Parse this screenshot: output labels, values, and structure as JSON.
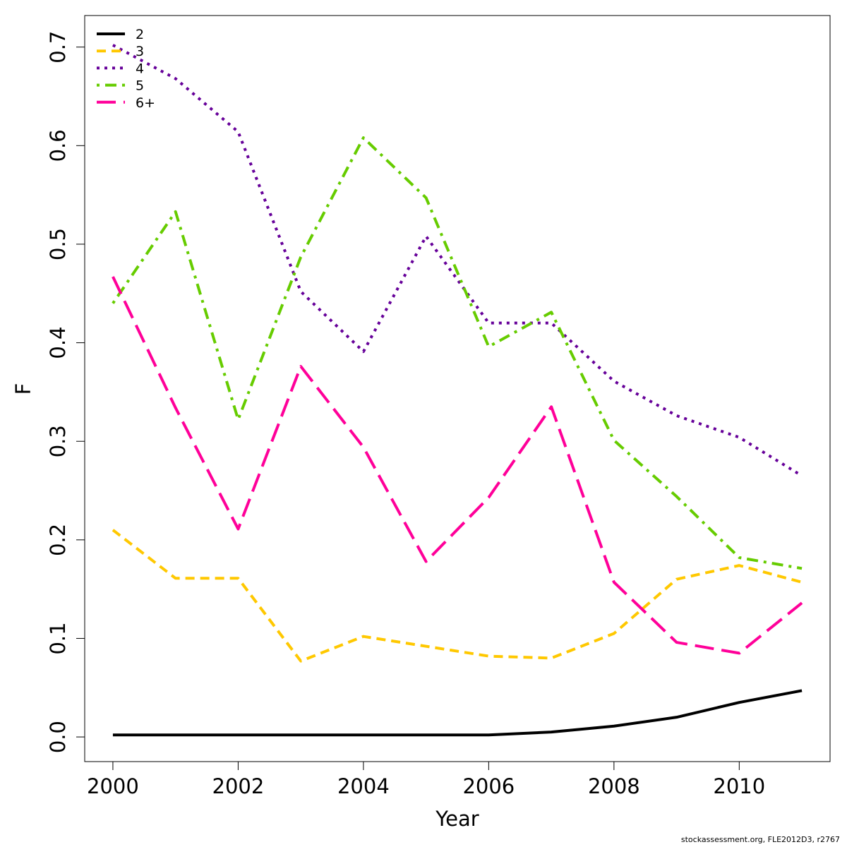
{
  "chart_data": {
    "type": "line",
    "xlabel": "Year",
    "ylabel": "F",
    "xlim": [
      1999.55,
      2011.45
    ],
    "ylim": [
      -0.025,
      0.732
    ],
    "x_ticks": [
      2000,
      2002,
      2004,
      2006,
      2008,
      2010
    ],
    "x_tick_labels": [
      "2000",
      "2002",
      "2004",
      "2006",
      "2008",
      "2010"
    ],
    "y_ticks": [
      0.0,
      0.1,
      0.2,
      0.3,
      0.4,
      0.5,
      0.6,
      0.7
    ],
    "y_tick_labels": [
      "0.0",
      "0.1",
      "0.2",
      "0.3",
      "0.4",
      "0.5",
      "0.6",
      "0.7"
    ],
    "grid": false,
    "legend_position": "top-left",
    "x": [
      2000,
      2001,
      2002,
      2003,
      2004,
      2005,
      2006,
      2007,
      2008,
      2009,
      2010,
      2011
    ],
    "series": [
      {
        "name": "2",
        "color": "#000000",
        "dash": "solid",
        "values": [
          0.002,
          0.002,
          0.002,
          0.002,
          0.002,
          0.002,
          0.002,
          0.005,
          0.011,
          0.02,
          0.035,
          0.047
        ]
      },
      {
        "name": "3",
        "color": "#FFC800",
        "dash": "dashed",
        "values": [
          0.21,
          0.161,
          0.161,
          0.077,
          0.102,
          0.092,
          0.082,
          0.08,
          0.105,
          0.16,
          0.174,
          0.157
        ]
      },
      {
        "name": "4",
        "color": "#660099",
        "dash": "dotted",
        "values": [
          0.702,
          0.668,
          0.614,
          0.452,
          0.391,
          0.508,
          0.42,
          0.42,
          0.361,
          0.326,
          0.304,
          0.265
        ]
      },
      {
        "name": "5",
        "color": "#66CC00",
        "dash": "dotdash",
        "values": [
          0.44,
          0.533,
          0.322,
          0.487,
          0.608,
          0.547,
          0.396,
          0.431,
          0.301,
          0.244,
          0.182,
          0.171
        ]
      },
      {
        "name": "6+",
        "color": "#FF0099",
        "dash": "longdash",
        "values": [
          0.467,
          0.334,
          0.211,
          0.376,
          0.294,
          0.178,
          0.243,
          0.335,
          0.157,
          0.096,
          0.085,
          0.136
        ]
      }
    ]
  },
  "footer": "stockassessment.org, FLE2012D3, r2767"
}
